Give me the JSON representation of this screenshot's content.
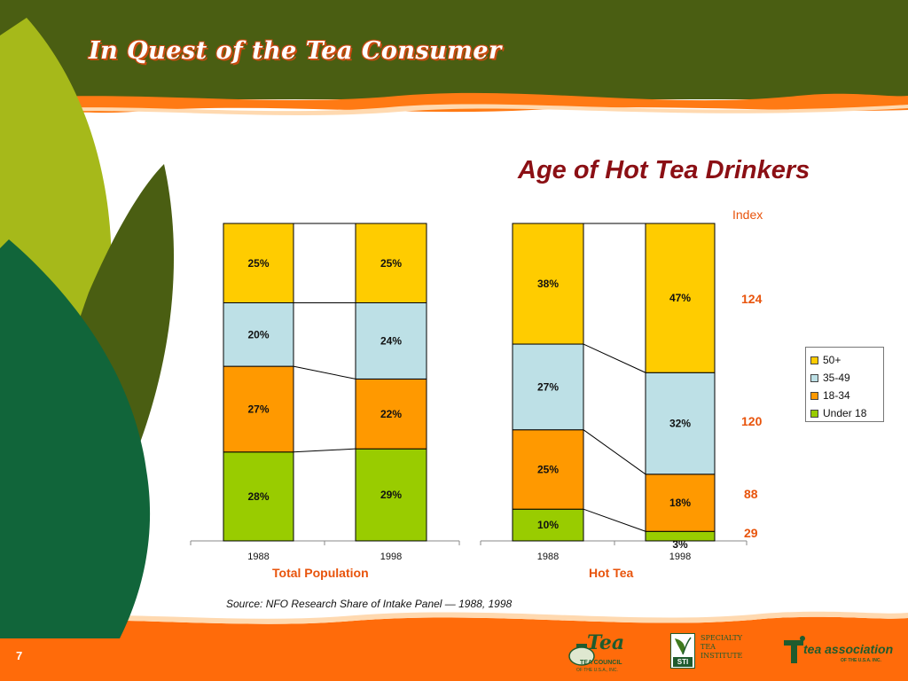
{
  "header": {
    "title": "In Quest of the Tea Consumer"
  },
  "chart_title": "Age of Hot Tea Drinkers",
  "index": {
    "heading": "Index",
    "values": [
      "124",
      "120",
      "88",
      "29"
    ]
  },
  "source": "Source: NFO Research Share of Intake Panel — 1988, 1998",
  "page_number": "7",
  "colors": {
    "under18": "#99cc00",
    "age18_34": "#ff9900",
    "age35_49": "#bde0e6",
    "age50plus": "#ffcc00",
    "header_green": "#4a5e12",
    "footer_orange": "#ff6b0a",
    "title_red": "#8b0f14",
    "index_orange": "#e8540c"
  },
  "logos": {
    "tea_council": {
      "word": "Tea",
      "line1": "TEA COUNCIL",
      "line2": "OF THE U.S.A., INC."
    },
    "sti": {
      "mark": "STI",
      "line1": "SPECIALTY",
      "line2": "TEA",
      "line3": "INSTITUTE"
    },
    "tea_association": {
      "word": "tea association",
      "line2": "OF THE U.S.A. INC."
    }
  },
  "chart_data": {
    "type": "bar",
    "stacked": true,
    "percent": true,
    "legend": {
      "position": "right",
      "entries": [
        "50+",
        "35-49",
        "18-34",
        "Under 18"
      ]
    },
    "groups": [
      {
        "label": "Total Population",
        "categories": [
          "1988",
          "1998"
        ],
        "series": [
          {
            "name": "Under 18",
            "values": [
              28,
              29
            ]
          },
          {
            "name": "18-34",
            "values": [
              27,
              22
            ]
          },
          {
            "name": "35-49",
            "values": [
              20,
              24
            ]
          },
          {
            "name": "50+",
            "values": [
              25,
              25
            ]
          }
        ]
      },
      {
        "label": "Hot Tea",
        "categories": [
          "1988",
          "1998"
        ],
        "series": [
          {
            "name": "Under 18",
            "values": [
              10,
              3
            ]
          },
          {
            "name": "18-34",
            "values": [
              25,
              18
            ]
          },
          {
            "name": "35-49",
            "values": [
              27,
              32
            ]
          },
          {
            "name": "50+",
            "values": [
              38,
              47
            ]
          }
        ]
      }
    ],
    "ylim": [
      0,
      100
    ]
  }
}
